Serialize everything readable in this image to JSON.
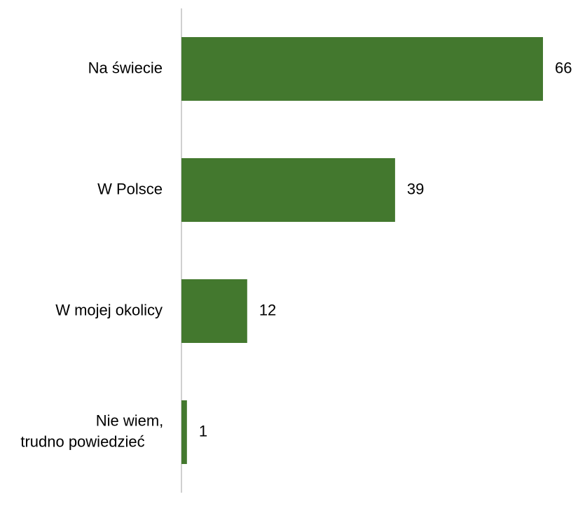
{
  "chart_data": {
    "type": "bar",
    "orientation": "horizontal",
    "categories": [
      [
        "Na świecie"
      ],
      [
        "W Polsce"
      ],
      [
        "W mojej okolicy"
      ],
      [
        "Nie wiem,",
        "trudno powiedzieć"
      ]
    ],
    "values": [
      66,
      39,
      12,
      1
    ],
    "title": "",
    "xlabel": "",
    "ylabel": "",
    "xlim": [
      0,
      70
    ],
    "grid": false,
    "legend": "none",
    "bar_color": "#43782E",
    "axis_color": "#D0D0D0"
  }
}
